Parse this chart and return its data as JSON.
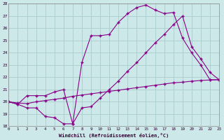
{
  "xlabel": "Windchill (Refroidissement éolien,°C)",
  "background_color": "#cce8e8",
  "grid_color": "#aacccc",
  "line_color": "#880088",
  "xlim": [
    0,
    23
  ],
  "ylim": [
    18,
    28
  ],
  "xticks": [
    0,
    1,
    2,
    3,
    4,
    5,
    6,
    7,
    8,
    9,
    10,
    11,
    12,
    13,
    14,
    15,
    16,
    17,
    18,
    19,
    20,
    21,
    22,
    23
  ],
  "yticks": [
    18,
    19,
    20,
    21,
    22,
    23,
    24,
    25,
    26,
    27,
    28
  ],
  "line1_x": [
    0,
    1,
    2,
    3,
    4,
    5,
    6,
    7,
    8,
    9,
    10,
    11,
    12,
    13,
    14,
    15,
    16,
    17,
    18,
    19,
    20,
    21,
    22,
    23
  ],
  "line1_y": [
    20.0,
    19.8,
    20.5,
    20.5,
    20.5,
    20.8,
    21.0,
    18.2,
    23.2,
    25.4,
    25.4,
    25.5,
    26.5,
    27.2,
    27.7,
    27.9,
    27.5,
    27.2,
    27.3,
    25.2,
    24.0,
    23.0,
    21.8,
    21.8
  ],
  "line2_x": [
    0,
    1,
    2,
    3,
    4,
    5,
    6,
    7,
    8,
    9,
    10,
    11,
    12,
    13,
    14,
    15,
    16,
    17,
    18,
    19,
    20,
    21,
    22,
    23
  ],
  "line2_y": [
    20.0,
    19.8,
    19.5,
    19.5,
    18.8,
    18.7,
    18.2,
    18.2,
    19.5,
    19.6,
    20.3,
    21.0,
    21.7,
    22.5,
    23.2,
    24.0,
    24.8,
    25.5,
    26.3,
    27.0,
    24.5,
    23.5,
    22.4,
    21.8
  ],
  "line3_x": [
    0,
    1,
    2,
    3,
    4,
    5,
    6,
    7,
    8,
    9,
    10,
    11,
    12,
    13,
    14,
    15,
    16,
    17,
    18,
    19,
    20,
    21,
    22,
    23
  ],
  "line3_y": [
    20.0,
    19.9,
    19.85,
    20.0,
    20.1,
    20.2,
    20.3,
    20.45,
    20.55,
    20.65,
    20.75,
    20.85,
    20.95,
    21.05,
    21.15,
    21.25,
    21.35,
    21.45,
    21.55,
    21.6,
    21.68,
    21.74,
    21.78,
    21.8
  ],
  "figsize": [
    3.2,
    2.0
  ],
  "dpi": 100
}
